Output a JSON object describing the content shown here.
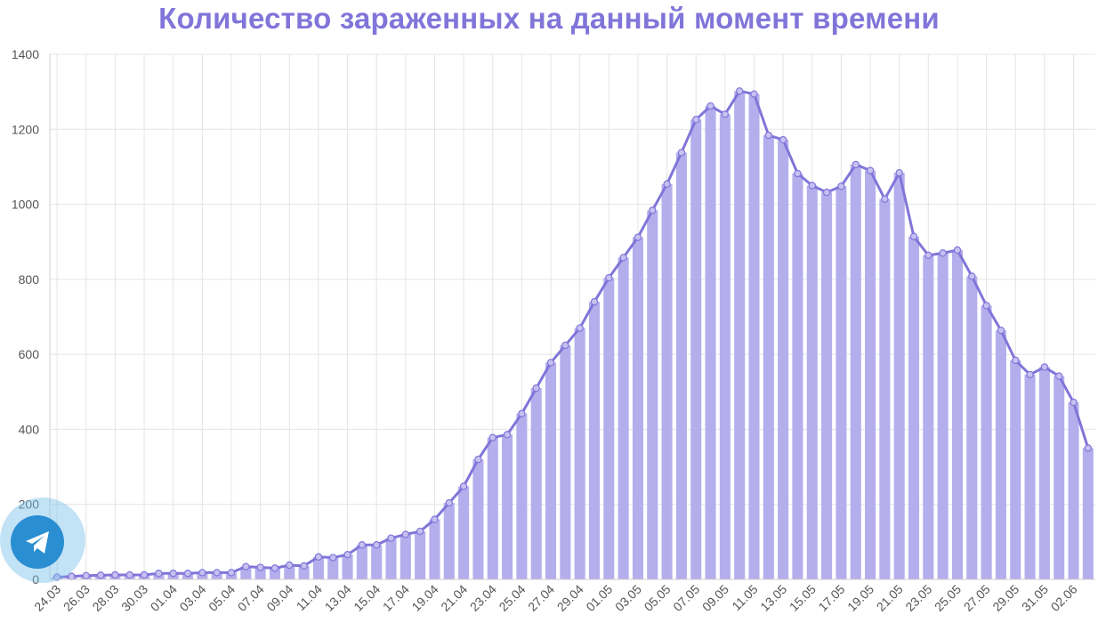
{
  "page": {
    "title": "Количество зараженных на данный момент времени",
    "telegram_icon": "telegram-icon"
  },
  "chart_data": {
    "type": "bar",
    "title": "Количество зараженных на данный момент времени",
    "xlabel": "",
    "ylabel": "",
    "ylim": [
      0,
      1400
    ],
    "yticks": [
      0,
      200,
      400,
      600,
      800,
      1000,
      1200,
      1400
    ],
    "grid": true,
    "bar_color": "#b5aeec",
    "line_color": "#8175d9",
    "title_color": "#8175d9",
    "categories": [
      "24.03",
      "25.03",
      "26.03",
      "27.03",
      "28.03",
      "29.03",
      "30.03",
      "31.03",
      "01.04",
      "02.04",
      "03.04",
      "04.04",
      "05.04",
      "06.04",
      "07.04",
      "08.04",
      "09.04",
      "10.04",
      "11.04",
      "12.04",
      "13.04",
      "14.04",
      "15.04",
      "16.04",
      "17.04",
      "18.04",
      "19.04",
      "20.04",
      "21.04",
      "22.04",
      "23.04",
      "24.04",
      "25.04",
      "26.04",
      "27.04",
      "28.04",
      "29.04",
      "30.04",
      "01.05",
      "02.05",
      "03.05",
      "04.05",
      "05.05",
      "06.05",
      "07.05",
      "08.05",
      "09.05",
      "10.05",
      "11.05",
      "12.05",
      "13.05",
      "14.05",
      "15.05",
      "16.05",
      "17.05",
      "18.05",
      "19.05",
      "20.05",
      "21.05",
      "22.05",
      "23.05",
      "24.05",
      "25.05",
      "26.05",
      "27.05",
      "28.05",
      "29.05",
      "30.05",
      "31.05",
      "01.06",
      "02.06",
      "03.06"
    ],
    "values": [
      6,
      8,
      10,
      11,
      12,
      12,
      12,
      16,
      16,
      16,
      18,
      18,
      18,
      34,
      32,
      30,
      38,
      36,
      60,
      58,
      66,
      92,
      92,
      110,
      120,
      128,
      160,
      204,
      248,
      320,
      378,
      386,
      442,
      510,
      578,
      624,
      670,
      740,
      804,
      858,
      912,
      984,
      1054,
      1138,
      1226,
      1262,
      1240,
      1302,
      1294,
      1184,
      1172,
      1082,
      1050,
      1032,
      1048,
      1106,
      1090,
      1014,
      1084,
      914,
      864,
      870,
      878,
      808,
      730,
      664,
      584,
      546,
      566,
      542,
      472,
      350
    ],
    "xtick_labels": [
      "24.03",
      "26.03",
      "28.03",
      "30.03",
      "01.04",
      "03.04",
      "05.04",
      "07.04",
      "09.04",
      "11.04",
      "13.04",
      "15.04",
      "17.04",
      "19.04",
      "21.04",
      "23.04",
      "25.04",
      "27.04",
      "29.04",
      "01.05",
      "03.05",
      "05.05",
      "07.05",
      "09.05",
      "11.05",
      "13.05",
      "15.05",
      "17.05",
      "19.05",
      "21.05",
      "23.05",
      "25.05",
      "27.05",
      "29.05",
      "31.05",
      "02.06"
    ]
  }
}
